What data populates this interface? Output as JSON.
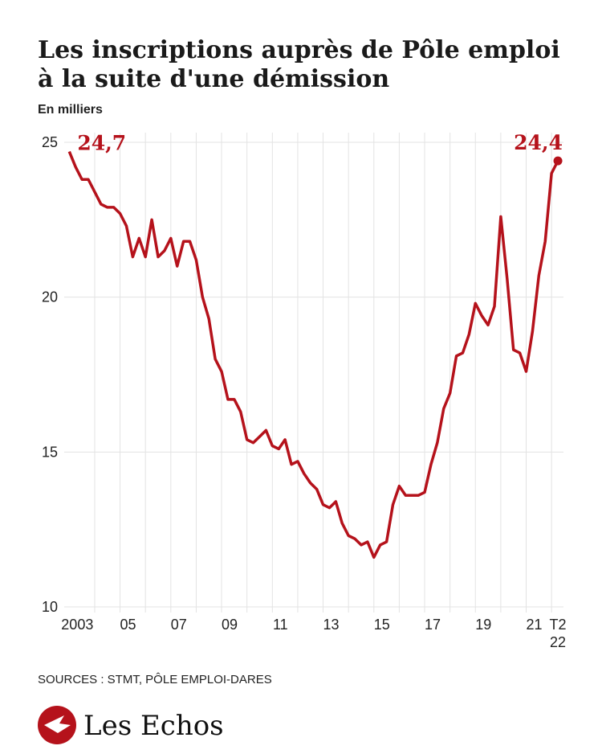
{
  "chart_data": {
    "type": "line",
    "title": [
      "Les inscriptions auprès de Pôle emploi",
      "à la suite d'une démission"
    ],
    "subtitle": "En milliers",
    "source": "SOURCES : STMT, PÔLE EMPLOI-DARES",
    "logo": "Les Echos",
    "x": [
      2003,
      2003.25,
      2003.5,
      2003.75,
      2004,
      2004.25,
      2004.5,
      2004.75,
      2005,
      2005.25,
      2005.5,
      2005.75,
      2006,
      2006.25,
      2006.5,
      2006.75,
      2007,
      2007.25,
      2007.5,
      2007.75,
      2008,
      2008.25,
      2008.5,
      2008.75,
      2009,
      2009.25,
      2009.5,
      2009.75,
      2010,
      2010.25,
      2010.5,
      2010.75,
      2011,
      2011.25,
      2011.5,
      2011.75,
      2012,
      2012.25,
      2012.5,
      2012.75,
      2013,
      2013.25,
      2013.5,
      2013.75,
      2014,
      2014.25,
      2014.5,
      2014.75,
      2015,
      2015.25,
      2015.5,
      2015.75,
      2016,
      2016.25,
      2016.5,
      2016.75,
      2017,
      2017.25,
      2017.5,
      2017.75,
      2018,
      2018.25,
      2018.5,
      2018.75,
      2019,
      2019.25,
      2019.5,
      2019.75,
      2020,
      2020.25,
      2020.5,
      2020.75,
      2021,
      2021.25,
      2021.5,
      2021.75,
      2022,
      2022.25
    ],
    "series": [
      {
        "name": "Inscriptions",
        "color": "#b5121b",
        "values": [
          24.7,
          24.2,
          23.8,
          23.8,
          23.4,
          23.0,
          22.9,
          22.9,
          22.7,
          22.3,
          21.3,
          21.9,
          21.3,
          22.5,
          21.3,
          21.5,
          21.9,
          21.0,
          21.8,
          21.8,
          21.2,
          20.0,
          19.3,
          18.0,
          17.6,
          16.7,
          16.7,
          16.3,
          15.4,
          15.3,
          15.5,
          15.7,
          15.2,
          15.1,
          15.4,
          14.6,
          14.7,
          14.3,
          14.0,
          13.8,
          13.3,
          13.2,
          13.4,
          12.7,
          12.3,
          12.2,
          12.0,
          12.1,
          11.6,
          12.0,
          12.1,
          13.3,
          13.9,
          13.6,
          13.6,
          13.6,
          13.7,
          14.6,
          15.3,
          16.4,
          16.9,
          18.1,
          18.2,
          18.8,
          19.8,
          19.4,
          19.1,
          19.7,
          22.6,
          20.6,
          18.3,
          18.2,
          17.6,
          18.9,
          20.7,
          21.8,
          24.0,
          24.4
        ]
      }
    ],
    "start_label": "24,7",
    "end_label": "24,4",
    "xlim": [
      2002.8,
      2022.47
    ],
    "ylim": [
      10,
      25
    ],
    "yticks": [
      10,
      15,
      20,
      25
    ],
    "xticks": [
      {
        "value": 2003,
        "label": "2003"
      },
      {
        "value": 2005,
        "label": "05"
      },
      {
        "value": 2007,
        "label": "07"
      },
      {
        "value": 2009,
        "label": "09"
      },
      {
        "value": 2011,
        "label": "11"
      },
      {
        "value": 2013,
        "label": "13"
      },
      {
        "value": 2015,
        "label": "15"
      },
      {
        "value": 2017,
        "label": "17"
      },
      {
        "value": 2019,
        "label": "19"
      },
      {
        "value": 2021,
        "label": "21"
      },
      {
        "value": 2022.25,
        "label": [
          "T2",
          "22"
        ]
      }
    ],
    "xgrid": [
      2004,
      2005,
      2006,
      2007,
      2008,
      2009,
      2010,
      2011,
      2012,
      2013,
      2014,
      2015,
      2016,
      2017,
      2018,
      2019,
      2020,
      2021,
      2022
    ],
    "grid": true
  }
}
